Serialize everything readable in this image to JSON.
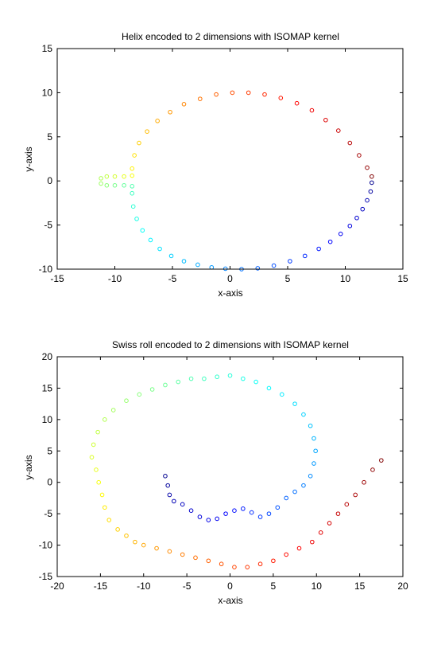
{
  "chart_data": [
    {
      "type": "scatter",
      "title": "Helix encoded to 2 dimensions with ISOMAP kernel",
      "xlabel": "x-axis",
      "ylabel": "y-axis",
      "xlim": [
        -15,
        15
      ],
      "ylim": [
        -10,
        15
      ],
      "xticks": [
        -15,
        -10,
        -5,
        0,
        5,
        10,
        15
      ],
      "yticks": [
        -10,
        -5,
        0,
        5,
        10,
        15
      ],
      "grid": false,
      "marker": "circle-open",
      "colormap": "jet",
      "colormap_stops": [
        "#00008f",
        "#0000ff",
        "#0080ff",
        "#00ffff",
        "#80ff80",
        "#ffff00",
        "#ff8000",
        "#ff0000",
        "#800000"
      ],
      "series": [
        {
          "color_by": "position along curve (blue to red)",
          "points": [
            [
              12.3,
              -0.2
            ],
            [
              12.2,
              -1.2
            ],
            [
              11.9,
              -2.2
            ],
            [
              11.5,
              -3.2
            ],
            [
              11.0,
              -4.2
            ],
            [
              10.4,
              -5.1
            ],
            [
              9.6,
              -6.0
            ],
            [
              8.7,
              -6.9
            ],
            [
              7.7,
              -7.7
            ],
            [
              6.5,
              -8.5
            ],
            [
              5.2,
              -9.1
            ],
            [
              3.8,
              -9.6
            ],
            [
              2.4,
              -9.9
            ],
            [
              1.0,
              -10.0
            ],
            [
              -0.4,
              -9.95
            ],
            [
              -1.6,
              -9.8
            ],
            [
              -2.8,
              -9.5
            ],
            [
              -4.0,
              -9.1
            ],
            [
              -5.1,
              -8.5
            ],
            [
              -6.1,
              -7.7
            ],
            [
              -6.9,
              -6.7
            ],
            [
              -7.6,
              -5.6
            ],
            [
              -8.1,
              -4.3
            ],
            [
              -8.4,
              -2.9
            ],
            [
              -8.5,
              -1.4
            ],
            [
              -8.5,
              -0.6
            ],
            [
              -9.2,
              -0.5
            ],
            [
              -10.0,
              -0.5
            ],
            [
              -10.7,
              -0.5
            ],
            [
              -11.2,
              -0.3
            ],
            [
              -11.2,
              0.3
            ],
            [
              -10.7,
              0.5
            ],
            [
              -10.0,
              0.5
            ],
            [
              -9.2,
              0.5
            ],
            [
              -8.5,
              0.6
            ],
            [
              -8.5,
              1.4
            ],
            [
              -8.3,
              2.9
            ],
            [
              -7.9,
              4.3
            ],
            [
              -7.2,
              5.6
            ],
            [
              -6.3,
              6.8
            ],
            [
              -5.2,
              7.8
            ],
            [
              -4.0,
              8.7
            ],
            [
              -2.6,
              9.3
            ],
            [
              -1.2,
              9.8
            ],
            [
              0.2,
              10.0
            ],
            [
              1.6,
              10.0
            ],
            [
              3.0,
              9.8
            ],
            [
              4.4,
              9.4
            ],
            [
              5.8,
              8.8
            ],
            [
              7.1,
              8.0
            ],
            [
              8.3,
              6.9
            ],
            [
              9.4,
              5.7
            ],
            [
              10.4,
              4.3
            ],
            [
              11.2,
              2.9
            ],
            [
              11.9,
              1.5
            ],
            [
              12.3,
              0.5
            ]
          ]
        }
      ]
    },
    {
      "type": "scatter",
      "title": "Swiss roll encoded to 2 dimensions with ISOMAP kernel",
      "xlabel": "x-axis",
      "ylabel": "y-axis",
      "xlim": [
        -20,
        20
      ],
      "ylim": [
        -15,
        20
      ],
      "xticks": [
        -20,
        -15,
        -10,
        -5,
        0,
        5,
        10,
        15,
        20
      ],
      "yticks": [
        -15,
        -10,
        -5,
        0,
        5,
        10,
        15,
        20
      ],
      "grid": false,
      "marker": "circle-open",
      "colormap": "jet",
      "colormap_stops": [
        "#00008f",
        "#0000ff",
        "#0080ff",
        "#00ffff",
        "#80ff80",
        "#ffff00",
        "#ff8000",
        "#ff0000",
        "#800000"
      ],
      "series": [
        {
          "color_by": "position along spiral (inner blue to outer dark red)",
          "points": [
            [
              -7.5,
              1.0
            ],
            [
              -7.2,
              -0.5
            ],
            [
              -7.0,
              -2.0
            ],
            [
              -6.5,
              -3.0
            ],
            [
              -5.5,
              -3.5
            ],
            [
              -4.5,
              -4.5
            ],
            [
              -3.5,
              -5.5
            ],
            [
              -2.5,
              -6.0
            ],
            [
              -1.5,
              -5.8
            ],
            [
              -0.5,
              -5.0
            ],
            [
              0.5,
              -4.5
            ],
            [
              1.5,
              -4.2
            ],
            [
              2.5,
              -4.8
            ],
            [
              3.5,
              -5.5
            ],
            [
              4.5,
              -5.0
            ],
            [
              5.5,
              -4.0
            ],
            [
              6.5,
              -2.5
            ],
            [
              7.5,
              -1.5
            ],
            [
              8.5,
              -0.5
            ],
            [
              9.3,
              1.0
            ],
            [
              9.7,
              3.0
            ],
            [
              9.9,
              5.0
            ],
            [
              9.7,
              7.0
            ],
            [
              9.3,
              9.0
            ],
            [
              8.5,
              10.8
            ],
            [
              7.5,
              12.5
            ],
            [
              6.0,
              14.0
            ],
            [
              4.5,
              15.0
            ],
            [
              3.0,
              16.0
            ],
            [
              1.5,
              16.5
            ],
            [
              0.0,
              17.0
            ],
            [
              -1.5,
              16.8
            ],
            [
              -3.0,
              16.5
            ],
            [
              -4.5,
              16.5
            ],
            [
              -6.0,
              16.0
            ],
            [
              -7.5,
              15.5
            ],
            [
              -9.0,
              14.8
            ],
            [
              -10.5,
              14.0
            ],
            [
              -12.0,
              13.0
            ],
            [
              -13.5,
              11.5
            ],
            [
              -14.5,
              10.0
            ],
            [
              -15.3,
              8.0
            ],
            [
              -15.8,
              6.0
            ],
            [
              -16.0,
              4.0
            ],
            [
              -15.5,
              2.0
            ],
            [
              -15.2,
              0.0
            ],
            [
              -14.8,
              -2.0
            ],
            [
              -14.5,
              -4.0
            ],
            [
              -14.0,
              -6.0
            ],
            [
              -13.0,
              -7.5
            ],
            [
              -12.0,
              -8.5
            ],
            [
              -11.0,
              -9.5
            ],
            [
              -10.0,
              -10.0
            ],
            [
              -8.5,
              -10.5
            ],
            [
              -7.0,
              -11.0
            ],
            [
              -5.5,
              -11.5
            ],
            [
              -4.0,
              -12.0
            ],
            [
              -2.5,
              -12.5
            ],
            [
              -1.0,
              -13.0
            ],
            [
              0.5,
              -13.5
            ],
            [
              2.0,
              -13.5
            ],
            [
              3.5,
              -13.0
            ],
            [
              5.0,
              -12.5
            ],
            [
              6.5,
              -11.5
            ],
            [
              8.0,
              -10.5
            ],
            [
              9.5,
              -9.5
            ],
            [
              10.5,
              -8.0
            ],
            [
              11.5,
              -6.5
            ],
            [
              12.5,
              -5.0
            ],
            [
              13.5,
              -3.5
            ],
            [
              14.5,
              -2.0
            ],
            [
              15.5,
              0.0
            ],
            [
              16.5,
              2.0
            ],
            [
              17.5,
              3.5
            ]
          ]
        }
      ]
    }
  ]
}
